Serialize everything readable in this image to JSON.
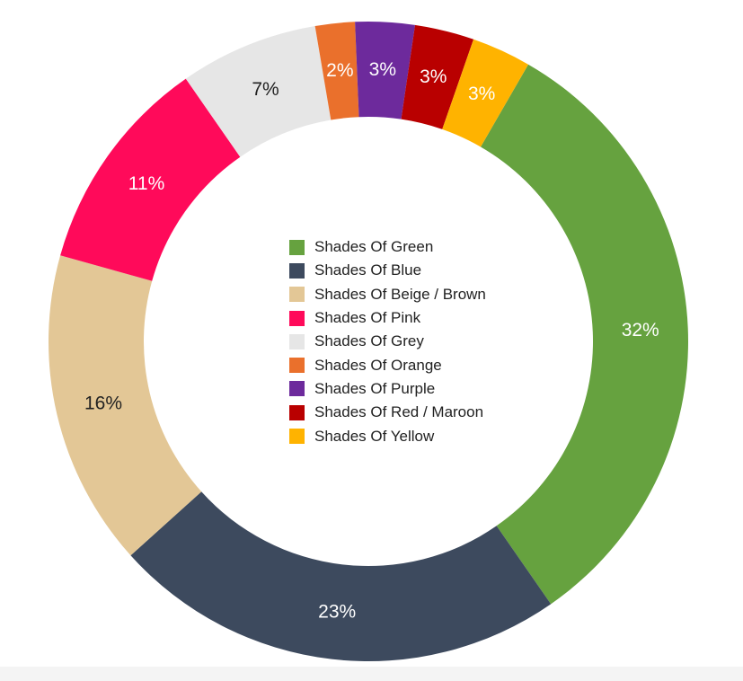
{
  "chart_data": {
    "type": "pie",
    "variant": "donut",
    "title": "",
    "legend_position": "center",
    "slices": [
      {
        "name": "Shades Of Green",
        "value": 32,
        "label": "32%",
        "color": "#66a23f",
        "label_color": "#ffffff"
      },
      {
        "name": "Shades Of Blue",
        "value": 23,
        "label": "23%",
        "color": "#3d4a5e",
        "label_color": "#ffffff"
      },
      {
        "name": "Shades Of Beige / Brown",
        "value": 16,
        "label": "16%",
        "color": "#e3c796",
        "label_color": "#222222"
      },
      {
        "name": "Shades Of Pink",
        "value": 11,
        "label": "11%",
        "color": "#ff0a5a",
        "label_color": "#ffffff"
      },
      {
        "name": "Shades Of Grey",
        "value": 7,
        "label": "7%",
        "color": "#e6e6e6",
        "label_color": "#222222"
      },
      {
        "name": "Shades Of Orange",
        "value": 2,
        "label": "2%",
        "color": "#ea702c",
        "label_color": "#ffffff"
      },
      {
        "name": "Shades Of Purple",
        "value": 3,
        "label": "3%",
        "color": "#6d2a9c",
        "label_color": "#ffffff"
      },
      {
        "name": "Shades Of Red / Maroon",
        "value": 3,
        "label": "3%",
        "color": "#b90000",
        "label_color": "#ffffff"
      },
      {
        "name": "Shades Of Yellow",
        "value": 3,
        "label": "3%",
        "color": "#ffb300",
        "label_color": "#ffffff"
      }
    ]
  }
}
